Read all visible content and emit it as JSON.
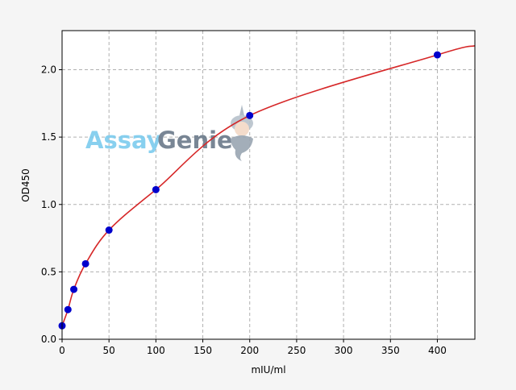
{
  "chart_data": {
    "type": "scatter",
    "title": "",
    "xlabel": "mIU/ml",
    "ylabel": "OD450",
    "xlim": [
      0,
      440
    ],
    "ylim": [
      0,
      2.29
    ],
    "xticks": [
      0,
      50,
      100,
      150,
      200,
      250,
      300,
      350,
      400
    ],
    "yticks": [
      0.0,
      0.5,
      1.0,
      1.5,
      2.0
    ],
    "ytick_labels": [
      "0.0",
      "0.5",
      "1.0",
      "1.5",
      "2.0"
    ],
    "grid": true,
    "series": [
      {
        "x": [
          0,
          6.25,
          12.5,
          25,
          50,
          100,
          200,
          400
        ],
        "y": [
          0.1,
          0.22,
          0.37,
          0.56,
          0.81,
          1.11,
          1.66,
          2.11
        ],
        "marker_color": "#0000cc",
        "fit_color": "#d62728"
      }
    ],
    "watermark": "AssayGenie"
  }
}
